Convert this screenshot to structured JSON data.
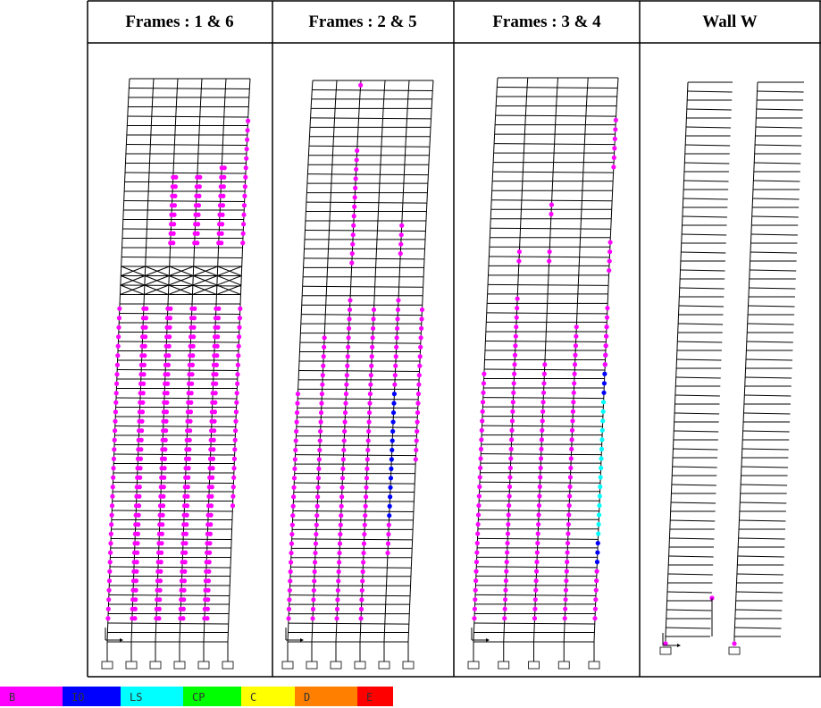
{
  "headers": [
    "Frames :  1 & 6",
    "Frames :  2 & 5",
    "Frames :  3 & 4",
    "Wall W"
  ],
  "legend": [
    {
      "label": "B",
      "color": "#ff00ff"
    },
    {
      "label": "IO",
      "color": "#0000ff"
    },
    {
      "label": "LS",
      "color": "#00ffff"
    },
    {
      "label": "CP",
      "color": "#00ff00"
    },
    {
      "label": "C",
      "color": "#ffff00"
    },
    {
      "label": "D",
      "color": "#ff8000"
    },
    {
      "label": "E",
      "color": "#ff0000"
    }
  ]
}
